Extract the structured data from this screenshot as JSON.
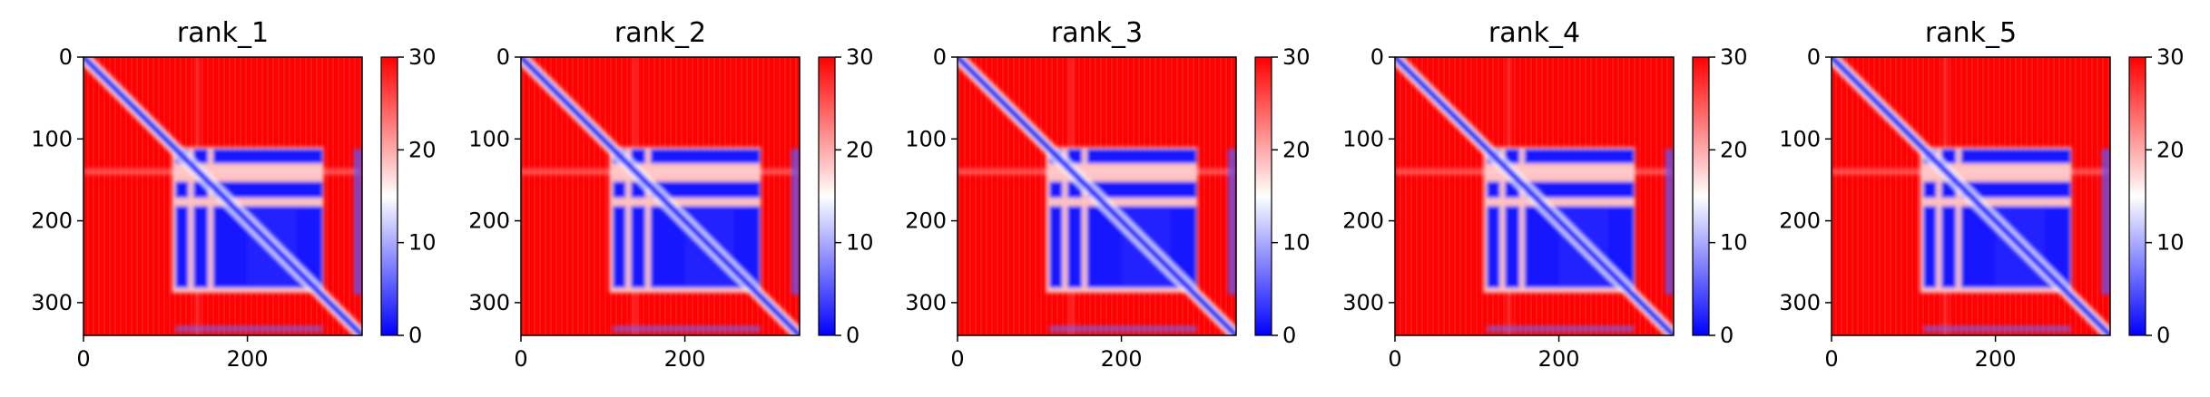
{
  "chart_data": [
    {
      "type": "heatmap",
      "title": "rank_1",
      "x_ticks": [
        "0",
        "200"
      ],
      "y_ticks": [
        "0",
        "100",
        "200",
        "300"
      ],
      "colorbar_ticks": [
        "0",
        "10",
        "20",
        "30"
      ],
      "colorbar_range": [
        0,
        30
      ],
      "matrix_size": 340,
      "colormap": [
        "#0000ff",
        "#ffffff",
        "#ff0000"
      ]
    },
    {
      "type": "heatmap",
      "title": "rank_2",
      "x_ticks": [
        "0",
        "200"
      ],
      "y_ticks": [
        "0",
        "100",
        "200",
        "300"
      ],
      "colorbar_ticks": [
        "0",
        "10",
        "20",
        "30"
      ],
      "colorbar_range": [
        0,
        30
      ],
      "matrix_size": 340,
      "colormap": [
        "#0000ff",
        "#ffffff",
        "#ff0000"
      ]
    },
    {
      "type": "heatmap",
      "title": "rank_3",
      "x_ticks": [
        "0",
        "200"
      ],
      "y_ticks": [
        "0",
        "100",
        "200",
        "300"
      ],
      "colorbar_ticks": [
        "0",
        "10",
        "20",
        "30"
      ],
      "colorbar_range": [
        0,
        30
      ],
      "matrix_size": 340,
      "colormap": [
        "#0000ff",
        "#ffffff",
        "#ff0000"
      ]
    },
    {
      "type": "heatmap",
      "title": "rank_4",
      "x_ticks": [
        "0",
        "200"
      ],
      "y_ticks": [
        "0",
        "100",
        "200",
        "300"
      ],
      "colorbar_ticks": [
        "0",
        "10",
        "20",
        "30"
      ],
      "colorbar_range": [
        0,
        30
      ],
      "matrix_size": 340,
      "colormap": [
        "#0000ff",
        "#ffffff",
        "#ff0000"
      ]
    },
    {
      "type": "heatmap",
      "title": "rank_5",
      "x_ticks": [
        "0",
        "200"
      ],
      "y_ticks": [
        "0",
        "100",
        "200",
        "300"
      ],
      "colorbar_ticks": [
        "0",
        "10",
        "20",
        "30"
      ],
      "colorbar_range": [
        0,
        30
      ],
      "matrix_size": 340,
      "colormap": [
        "#0000ff",
        "#ffffff",
        "#ff0000"
      ]
    }
  ]
}
